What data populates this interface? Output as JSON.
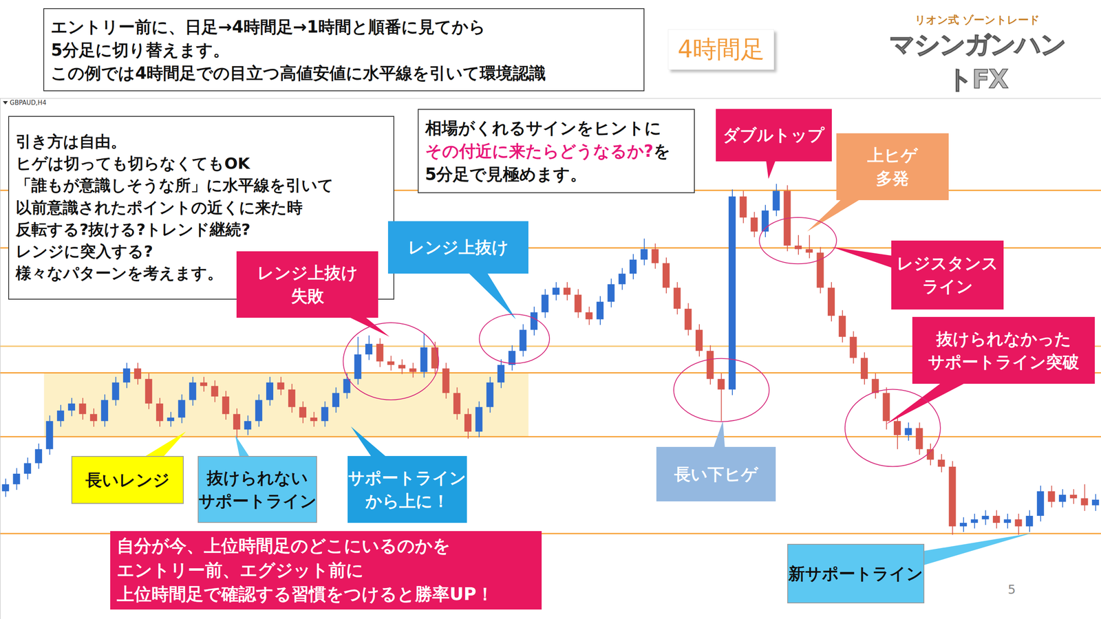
{
  "header": {
    "lines": [
      "エントリー前に、日足→4時間足→1時間と順番に見てから",
      "5分足に切り替えます。",
      "この例では4時間足での目立つ高値安値に水平線を引いて環境認識"
    ]
  },
  "timeframe_label": "4時間足",
  "logo": {
    "top": "リオン式 ゾーントレード",
    "main": "マシンガンハントFX"
  },
  "chart_data": {
    "type": "candlestick",
    "symbol_label": "GBPAUD,H4",
    "open": [
      1.93,
      1.931,
      1.9325,
      1.934,
      1.936,
      1.94,
      1.9415,
      1.9425,
      1.941,
      1.94,
      1.943,
      1.9455,
      1.9475,
      1.946,
      1.9425,
      1.94,
      1.9405,
      1.943,
      1.9455,
      1.945,
      1.9435,
      1.941,
      1.9388,
      1.94,
      1.943,
      1.9455,
      1.9445,
      1.942,
      1.9405,
      1.94,
      1.942,
      1.944,
      1.946,
      1.9495,
      1.951,
      1.9485,
      1.948,
      1.9475,
      1.947,
      1.9505,
      1.9475,
      1.944,
      1.941,
      1.9385,
      1.942,
      1.9455,
      1.948,
      1.95,
      1.953,
      1.9555,
      1.958,
      1.959,
      1.958,
      1.9555,
      1.9545,
      1.957,
      1.9595,
      1.961,
      1.963,
      1.9645,
      1.9625,
      1.959,
      1.956,
      1.953,
      1.95,
      1.946,
      1.9445,
      1.972,
      1.969,
      1.967,
      1.97,
      1.9728,
      1.965,
      1.9645,
      1.964,
      1.959,
      1.955,
      1.952,
      1.949,
      1.946,
      1.944,
      1.94,
      1.938,
      1.939,
      1.936,
      1.9345,
      1.9335,
      1.925,
      1.9255,
      1.926,
      1.9265,
      1.9255,
      1.926,
      1.925,
      1.9265,
      1.93,
      1.9285,
      1.9295,
      1.929,
      1.928
    ],
    "high": [
      1.9318,
      1.9333,
      1.9348,
      1.9368,
      1.9408,
      1.9423,
      1.9433,
      1.9433,
      1.9418,
      1.9438,
      1.9463,
      1.9483,
      1.9483,
      1.9468,
      1.9433,
      1.9413,
      1.9438,
      1.9463,
      1.9463,
      1.9458,
      1.9443,
      1.9418,
      1.9408,
      1.9438,
      1.9463,
      1.9463,
      1.9453,
      1.9428,
      1.9413,
      1.9428,
      1.9448,
      1.9468,
      1.952,
      1.9522,
      1.9518,
      1.9493,
      1.9488,
      1.9483,
      1.9525,
      1.9513,
      1.9483,
      1.9448,
      1.9418,
      1.9428,
      1.9463,
      1.9488,
      1.9508,
      1.9538,
      1.9563,
      1.9588,
      1.9598,
      1.9598,
      1.9588,
      1.9563,
      1.9578,
      1.9603,
      1.9618,
      1.9638,
      1.966,
      1.9653,
      1.9633,
      1.9598,
      1.9568,
      1.9538,
      1.9508,
      1.9468,
      1.973,
      1.9728,
      1.9698,
      1.9708,
      1.9738,
      1.9736,
      1.9665,
      1.9665,
      1.9648,
      1.9598,
      1.9558,
      1.9528,
      1.9498,
      1.9468,
      1.9448,
      1.9408,
      1.9398,
      1.9398,
      1.9368,
      1.9353,
      1.9343,
      1.9263,
      1.9268,
      1.9273,
      1.9273,
      1.9268,
      1.9268,
      1.9273,
      1.9308,
      1.9308,
      1.9303,
      1.9303,
      1.931,
      1.9296
    ],
    "low": [
      1.9292,
      1.9302,
      1.9317,
      1.9332,
      1.9352,
      1.9392,
      1.9407,
      1.9402,
      1.9392,
      1.9392,
      1.9422,
      1.9447,
      1.9452,
      1.9417,
      1.9392,
      1.9392,
      1.9397,
      1.9422,
      1.9442,
      1.9427,
      1.9402,
      1.9375,
      1.938,
      1.9392,
      1.9422,
      1.9437,
      1.9412,
      1.9397,
      1.9392,
      1.9392,
      1.9412,
      1.9432,
      1.9452,
      1.9487,
      1.9477,
      1.9472,
      1.9467,
      1.9462,
      1.9462,
      1.9467,
      1.9432,
      1.9402,
      1.9375,
      1.9377,
      1.9412,
      1.9447,
      1.9472,
      1.9492,
      1.9522,
      1.9547,
      1.9572,
      1.9572,
      1.9547,
      1.9537,
      1.9537,
      1.9562,
      1.9587,
      1.9602,
      1.9622,
      1.9617,
      1.9582,
      1.9552,
      1.9522,
      1.9492,
      1.9452,
      1.94,
      1.9437,
      1.9682,
      1.9662,
      1.9662,
      1.9692,
      1.9642,
      1.9637,
      1.9632,
      1.9582,
      1.9542,
      1.9512,
      1.9482,
      1.9452,
      1.9432,
      1.9388,
      1.936,
      1.9372,
      1.9352,
      1.9337,
      1.9327,
      1.9238,
      1.9242,
      1.9247,
      1.9252,
      1.9247,
      1.9247,
      1.9238,
      1.9242,
      1.9257,
      1.9277,
      1.9277,
      1.9282,
      1.9272,
      1.9272
    ],
    "close": [
      1.931,
      1.9325,
      1.934,
      1.936,
      1.94,
      1.9415,
      1.9425,
      1.941,
      1.94,
      1.943,
      1.9455,
      1.9475,
      1.946,
      1.9425,
      1.94,
      1.9405,
      1.943,
      1.9455,
      1.945,
      1.9435,
      1.941,
      1.9388,
      1.94,
      1.943,
      1.9455,
      1.9445,
      1.942,
      1.9405,
      1.94,
      1.942,
      1.944,
      1.946,
      1.9495,
      1.951,
      1.9485,
      1.948,
      1.9475,
      1.947,
      1.9505,
      1.9475,
      1.944,
      1.941,
      1.9385,
      1.942,
      1.9455,
      1.948,
      1.95,
      1.953,
      1.9555,
      1.958,
      1.959,
      1.958,
      1.9555,
      1.9545,
      1.957,
      1.9595,
      1.961,
      1.963,
      1.9645,
      1.9625,
      1.959,
      1.956,
      1.953,
      1.95,
      1.946,
      1.9445,
      1.972,
      1.969,
      1.967,
      1.97,
      1.9728,
      1.965,
      1.9645,
      1.964,
      1.959,
      1.955,
      1.952,
      1.949,
      1.946,
      1.944,
      1.94,
      1.938,
      1.939,
      1.936,
      1.9345,
      1.9335,
      1.925,
      1.9255,
      1.926,
      1.9265,
      1.9255,
      1.926,
      1.925,
      1.9265,
      1.93,
      1.9285,
      1.9295,
      1.929,
      1.928,
      1.9288
    ],
    "ylim": [
      1.9118,
      1.986
    ],
    "tick_labels": false,
    "grid": false,
    "color": {
      "up": "#2f6fd0",
      "down": "#d6584e"
    },
    "levels": [
      {
        "value": 1.9729,
        "color": "#f7a035"
      },
      {
        "value": 1.9647,
        "color": "#f7a035"
      },
      {
        "value": 1.9507,
        "color": "#f7c46b"
      },
      {
        "value": 1.9469,
        "color": "#f7a035"
      },
      {
        "value": 1.9378,
        "color": "#f7a035"
      },
      {
        "value": 1.924,
        "color": "#f7a035"
      }
    ],
    "highlight": {
      "start": 4,
      "end": 47,
      "low": 1.9378,
      "high": 1.9469,
      "color": "#fdf0c6"
    }
  },
  "annotations": [
    {
      "lines": [
        "引き方は自由。",
        "ヒゲは切っても切らなくてもOK",
        "「誰もが意識しそうな所」に水平線を引いて",
        "以前意識されたポイントの近くに来た時",
        "反転する?抜ける?トレンド継続?",
        "レンジに突入する?",
        "様々なパターンを考えます。"
      ]
    },
    {
      "lines": [
        "相場がくれるサインをヒントに",
        [
          {
            "text": "その付近に来たらどうなるか?",
            "emphasis": true
          },
          {
            "text": "を"
          }
        ],
        "5分足で見極めます。"
      ]
    },
    {
      "lines": [
        "ダブルトップ"
      ]
    },
    {
      "lines": [
        "上ヒゲ",
        "多発"
      ]
    },
    {
      "lines": [
        "レジスタンス",
        "ライン"
      ]
    },
    {
      "lines": [
        "抜けられなかった",
        "サポートライン突破"
      ]
    },
    {
      "lines": [
        "レンジ上抜け",
        "失敗"
      ]
    },
    {
      "lines": [
        "レンジ上抜け"
      ]
    },
    {
      "lines": [
        "長いレンジ"
      ]
    },
    {
      "lines": [
        "抜けられない",
        "サポートライン"
      ]
    },
    {
      "lines": [
        "サポートライン",
        "から上に！"
      ]
    },
    {
      "lines": [
        "長い下ヒゲ"
      ]
    },
    {
      "lines": [
        "新サポートライン"
      ]
    },
    {
      "lines": [
        "自分が今、上位時間足のどこにいるのかを",
        "エントリー前、エグジット前に",
        "上位時間足で確認する習慣をつけると勝率UP！"
      ]
    }
  ],
  "page_number": 5
}
